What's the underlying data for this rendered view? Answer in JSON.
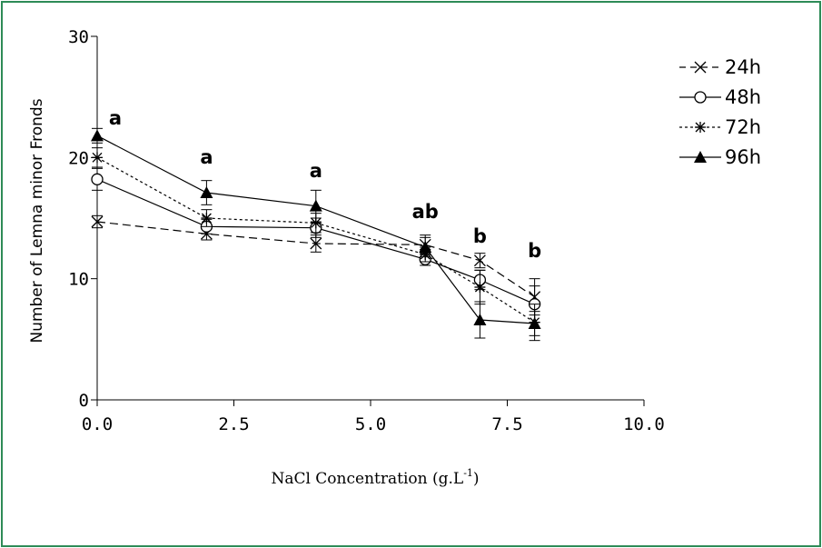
{
  "chart_data": {
    "type": "line",
    "xlabel": "NaCl Concentration (g.L",
    "xlabel_superscript": "-1",
    "xlabel_suffix": ")",
    "ylabel": "Number of Lemna minor Fronds",
    "xlim": [
      0,
      10
    ],
    "ylim": [
      0,
      30
    ],
    "x_ticks": [
      "0.0",
      "2.5",
      "5.0",
      "7.5",
      "10.0"
    ],
    "y_ticks": [
      "0",
      "10",
      "20",
      "30"
    ],
    "grid": false,
    "legend_position": "top-right",
    "x": [
      0,
      2,
      4,
      6,
      7,
      8
    ],
    "series": [
      {
        "name": "24h",
        "marker": "x",
        "line": "dashed",
        "values": [
          14.7,
          13.7,
          12.9,
          12.8,
          11.5,
          8.5
        ],
        "errors": [
          0.5,
          0.5,
          0.7,
          0.8,
          0.6,
          1.5
        ]
      },
      {
        "name": "48h",
        "marker": "open-circle",
        "line": "solid",
        "values": [
          18.2,
          14.3,
          14.2,
          11.6,
          9.9,
          7.9
        ],
        "errors": [
          0.9,
          0.6,
          0.8,
          0.5,
          0.8,
          1.5
        ]
      },
      {
        "name": "72h",
        "marker": "asterisk",
        "line": "dotted",
        "values": [
          20.0,
          15.0,
          14.6,
          12.0,
          9.3,
          6.4
        ],
        "errors": [
          0.8,
          0.7,
          0.8,
          0.6,
          1.4,
          1.5
        ]
      },
      {
        "name": "96h",
        "marker": "filled-triangle",
        "line": "solid",
        "values": [
          21.8,
          17.1,
          16.0,
          12.6,
          6.6,
          6.3
        ],
        "errors": [
          0.6,
          1.0,
          1.3,
          0.8,
          1.5,
          1.0
        ]
      }
    ],
    "annotations": [
      {
        "x": 0,
        "text": "a"
      },
      {
        "x": 2,
        "text": "a"
      },
      {
        "x": 4,
        "text": "a"
      },
      {
        "x": 6,
        "text": "ab"
      },
      {
        "x": 7,
        "text": "b"
      },
      {
        "x": 8,
        "text": "b"
      }
    ]
  }
}
